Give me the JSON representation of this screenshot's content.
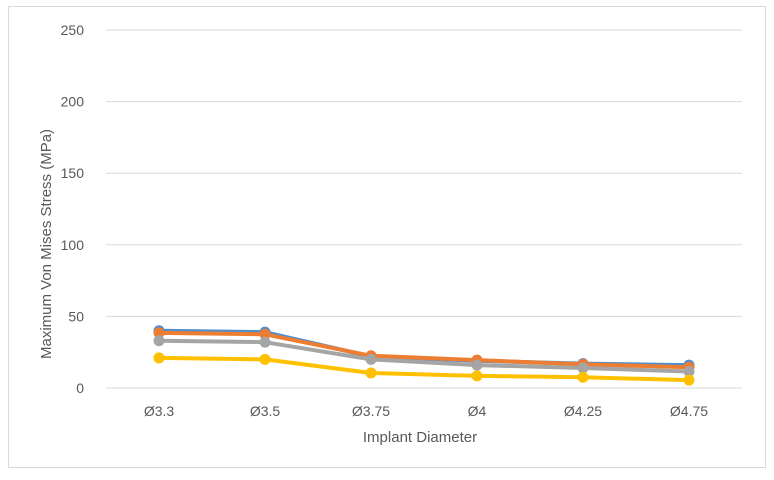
{
  "chart_data": {
    "type": "line",
    "title": "",
    "xlabel": "Implant Diameter",
    "ylabel": "Maximum Von Mises Stress (MPa)",
    "categories": [
      "Ø3.3",
      "Ø3.5",
      "Ø3.75",
      "Ø4",
      "Ø4.25",
      "Ø4.75"
    ],
    "ylim": [
      0,
      250
    ],
    "yticks": [
      0,
      50,
      100,
      150,
      200,
      250
    ],
    "grid": true,
    "legend": "none",
    "series": [
      {
        "color": "#4e8fd0",
        "values": [
          40,
          39,
          22,
          19,
          17,
          16
        ]
      },
      {
        "color": "#ed7d31",
        "values": [
          38.5,
          37.5,
          22.5,
          19.5,
          16.5,
          14.5
        ]
      },
      {
        "color": "#a5a5a5",
        "values": [
          33,
          32,
          20,
          16,
          14,
          11.5
        ]
      },
      {
        "color": "#ffc000",
        "values": [
          21,
          20,
          10.5,
          8.5,
          7.5,
          5.5
        ]
      }
    ]
  }
}
